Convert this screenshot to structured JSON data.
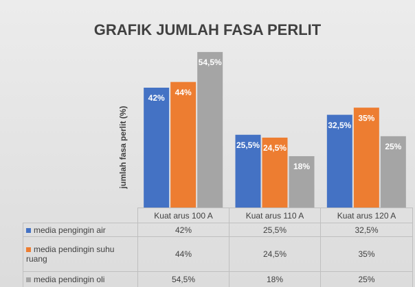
{
  "chart_data": {
    "type": "bar",
    "title": "GRAFIK JUMLAH FASA PERLIT",
    "y_label": "jumlah fasa perlit (%)",
    "categories": [
      "Kuat arus 100 A",
      "Kuat arus 110 A",
      "Kuat arus 120 A"
    ],
    "series": [
      {
        "name": "media pengingin air",
        "color": "#4472c4",
        "values": [
          42,
          25.5,
          32.5
        ],
        "value_labels": [
          "42%",
          "25,5%",
          "32,5%"
        ]
      },
      {
        "name": "media pendingin suhu ruang",
        "color": "#ed7d31",
        "values": [
          44,
          24.5,
          35
        ],
        "value_labels": [
          "44%",
          "24,5%",
          "35%"
        ]
      },
      {
        "name": "media pendingin oli",
        "color": "#a5a5a5",
        "values": [
          54.5,
          18,
          25
        ],
        "value_labels": [
          "54,5%",
          "18%",
          "25%"
        ]
      }
    ],
    "ylim": [
      0,
      60
    ]
  }
}
